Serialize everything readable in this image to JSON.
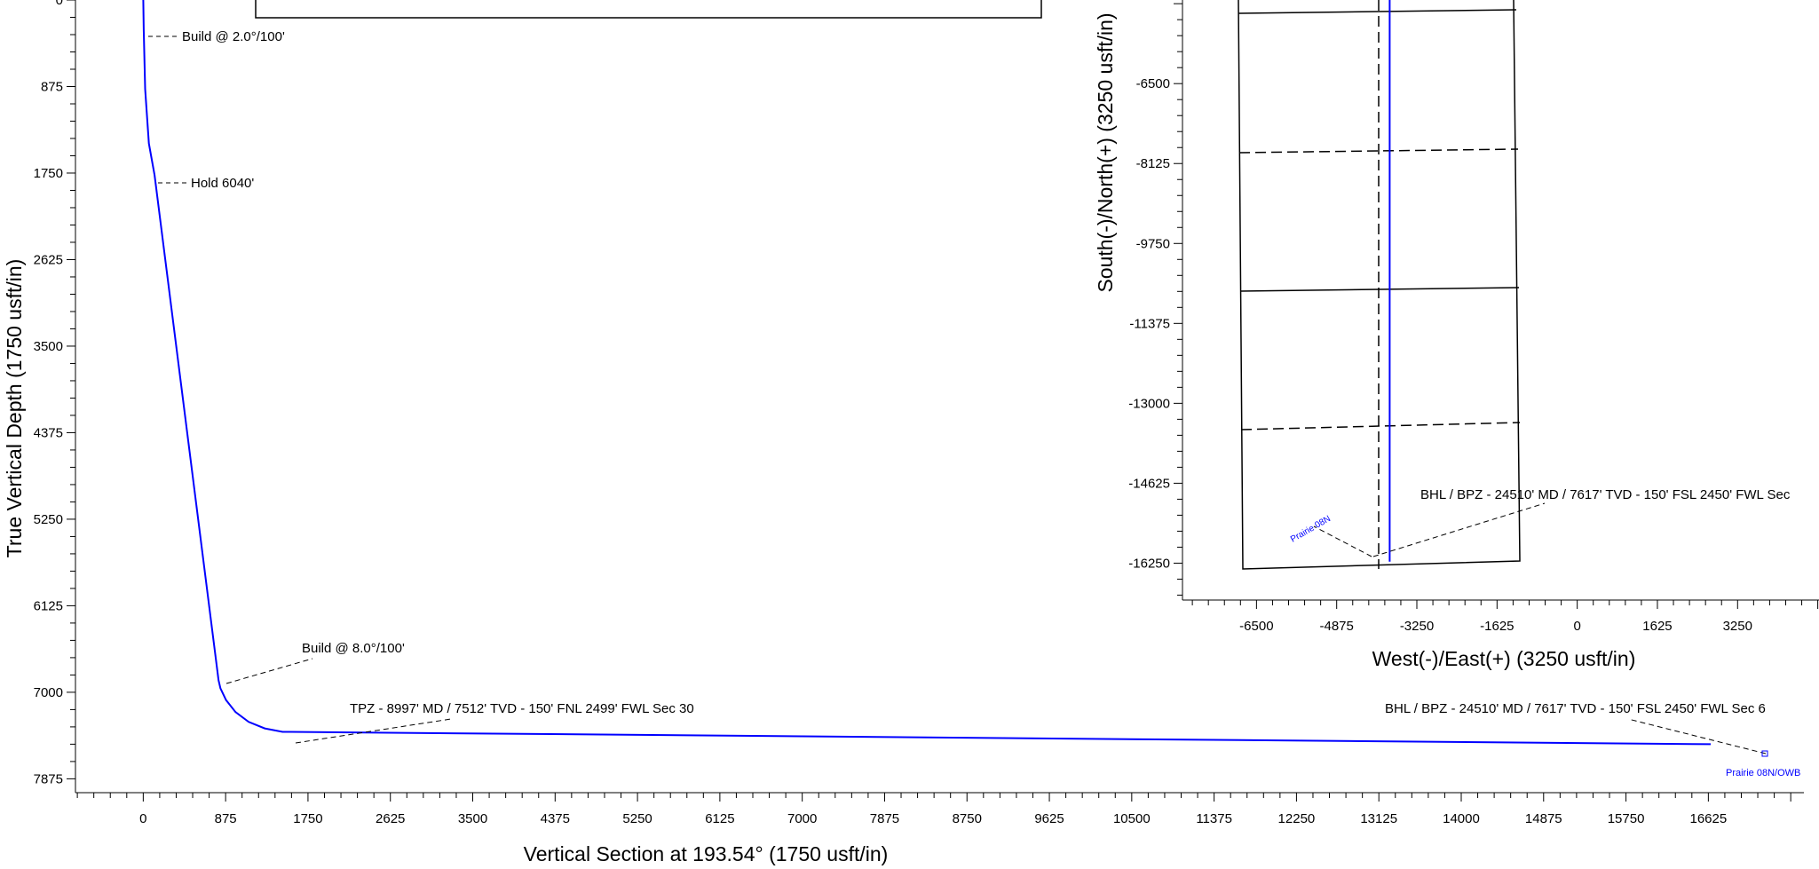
{
  "chart_data": [
    {
      "type": "line",
      "xlabel": "Vertical Section at 193.54° (1750 usft/in)",
      "ylabel": "True Vertical Depth (1750 usft/in)",
      "xlim": [
        -720,
        17640
      ],
      "ylim": [
        0,
        8060
      ],
      "y_inverted": true,
      "x_ticks": [
        "0",
        "875",
        "1750",
        "2625",
        "3500",
        "4375",
        "5250",
        "6125",
        "7000",
        "7875",
        "8750",
        "9625",
        "10500",
        "11375",
        "12250",
        "13125",
        "14000",
        "14875",
        "15750",
        "16625"
      ],
      "y_ticks": [
        "0",
        "875",
        "1750",
        "2625",
        "3500",
        "4375",
        "5250",
        "6125",
        "7000",
        "7875"
      ],
      "series": [
        {
          "color": "#0000ff",
          "x": [
            0,
            5,
            20,
            60,
            120,
            800,
            820,
            880,
            980,
            1120,
            1290,
            1480,
            1560,
            16650
          ],
          "y": [
            0,
            300,
            900,
            1450,
            1770,
            6880,
            6960,
            7080,
            7200,
            7300,
            7365,
            7400,
            7400,
            7525
          ]
        }
      ],
      "annotations": [
        {
          "text": "Build @ 2.0°/100'",
          "x": 20,
          "y": 250
        },
        {
          "text": "Hold  6040'",
          "x": 120,
          "y": 1750
        },
        {
          "text": "Build @ 8.0°/100'",
          "x": 820,
          "y": 6910
        },
        {
          "text": "TPZ - 8997' MD / 7512' TVD - 150' FNL 2499' FWL Sec 30",
          "x": 1560,
          "y": 7400
        },
        {
          "text": "BHL / BPZ - 24510' MD /  7617' TVD - 150' FSL 2450' FWL Sec 6",
          "x": 16650,
          "y": 7525
        },
        {
          "text": "Prairie 08N/OWB",
          "x": 16650,
          "y": 7525
        }
      ]
    },
    {
      "type": "line",
      "xlabel": "West(-)/East(+) (3250 usft/in)",
      "ylabel": "South(-)/North(+) (3250 usft/in)",
      "xlim": [
        -8000,
        4900
      ],
      "ylim": [
        -17000,
        -4800
      ],
      "x_ticks": [
        "-6500",
        "-4875",
        "-3250",
        "-1625",
        "0",
        "1625",
        "3250"
      ],
      "y_ticks": [
        "-6500",
        "-8125",
        "-9750",
        "-11375",
        "-13000",
        "-14625",
        "-16250"
      ],
      "series": [
        {
          "color": "#0000ff",
          "x": [
            -3800,
            -3800
          ],
          "y": [
            -4800,
            -16220
          ]
        }
      ],
      "annotations": [
        {
          "text": "BHL / BPZ - 24510' MD /  7617' TVD - 150' FSL 2450' FWL Sec",
          "x": -3800,
          "y": -16220
        },
        {
          "text": "Prairie 08N",
          "x": -3800,
          "y": -16220
        }
      ]
    }
  ]
}
